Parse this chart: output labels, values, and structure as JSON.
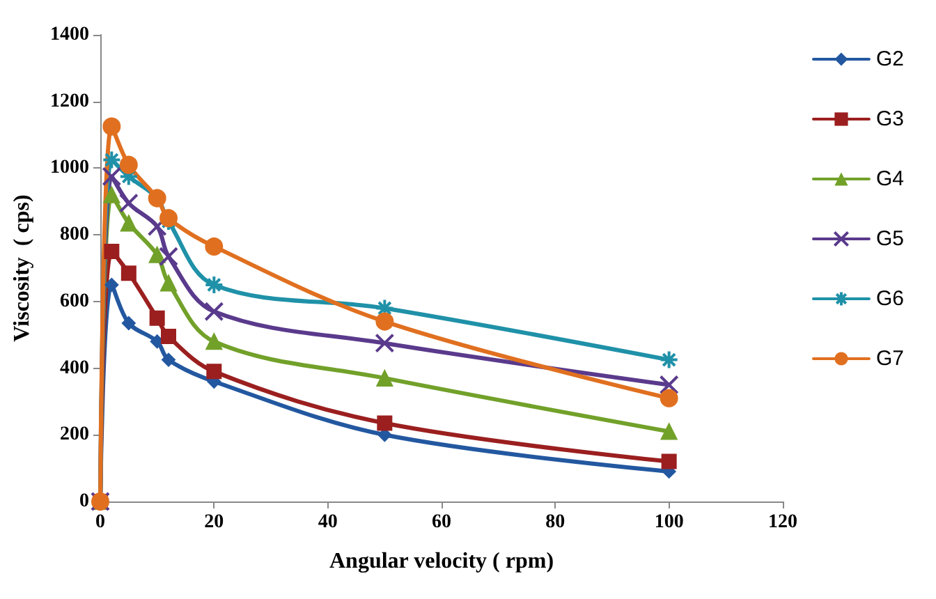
{
  "chart_data": {
    "type": "line",
    "xlabel": "Angular velocity ( rpm)",
    "ylabel": "Viscosity  ( cps)",
    "x": [
      0,
      2,
      5,
      10,
      12,
      20,
      50,
      100
    ],
    "xlim": [
      0,
      120
    ],
    "xticks": [
      0,
      20,
      40,
      60,
      80,
      100,
      120
    ],
    "ylim": [
      0,
      1400
    ],
    "yticks": [
      0,
      200,
      400,
      600,
      800,
      1000,
      1200,
      1400
    ],
    "grid": false,
    "legend": "right",
    "line_style": "solid",
    "series": [
      {
        "name": "G2",
        "color": "#2358a0",
        "marker": "diamond",
        "values": [
          0,
          650,
          535,
          480,
          425,
          360,
          200,
          90
        ]
      },
      {
        "name": "G3",
        "color": "#9b1f1f",
        "marker": "square",
        "values": [
          0,
          750,
          685,
          550,
          495,
          390,
          235,
          120
        ]
      },
      {
        "name": "G4",
        "color": "#72a12a",
        "marker": "triangle",
        "values": [
          0,
          920,
          835,
          740,
          655,
          480,
          370,
          210
        ]
      },
      {
        "name": "G5",
        "color": "#5a3a8c",
        "marker": "cross",
        "values": [
          0,
          975,
          895,
          825,
          735,
          570,
          475,
          350
        ]
      },
      {
        "name": "G6",
        "color": "#1f91a8",
        "marker": "cross",
        "values": [
          0,
          1025,
          975,
          910,
          840,
          650,
          580,
          425
        ]
      },
      {
        "name": "G7",
        "color": "#e07020",
        "marker": "circle",
        "values": [
          0,
          1125,
          1010,
          910,
          850,
          765,
          540,
          310
        ]
      }
    ]
  }
}
